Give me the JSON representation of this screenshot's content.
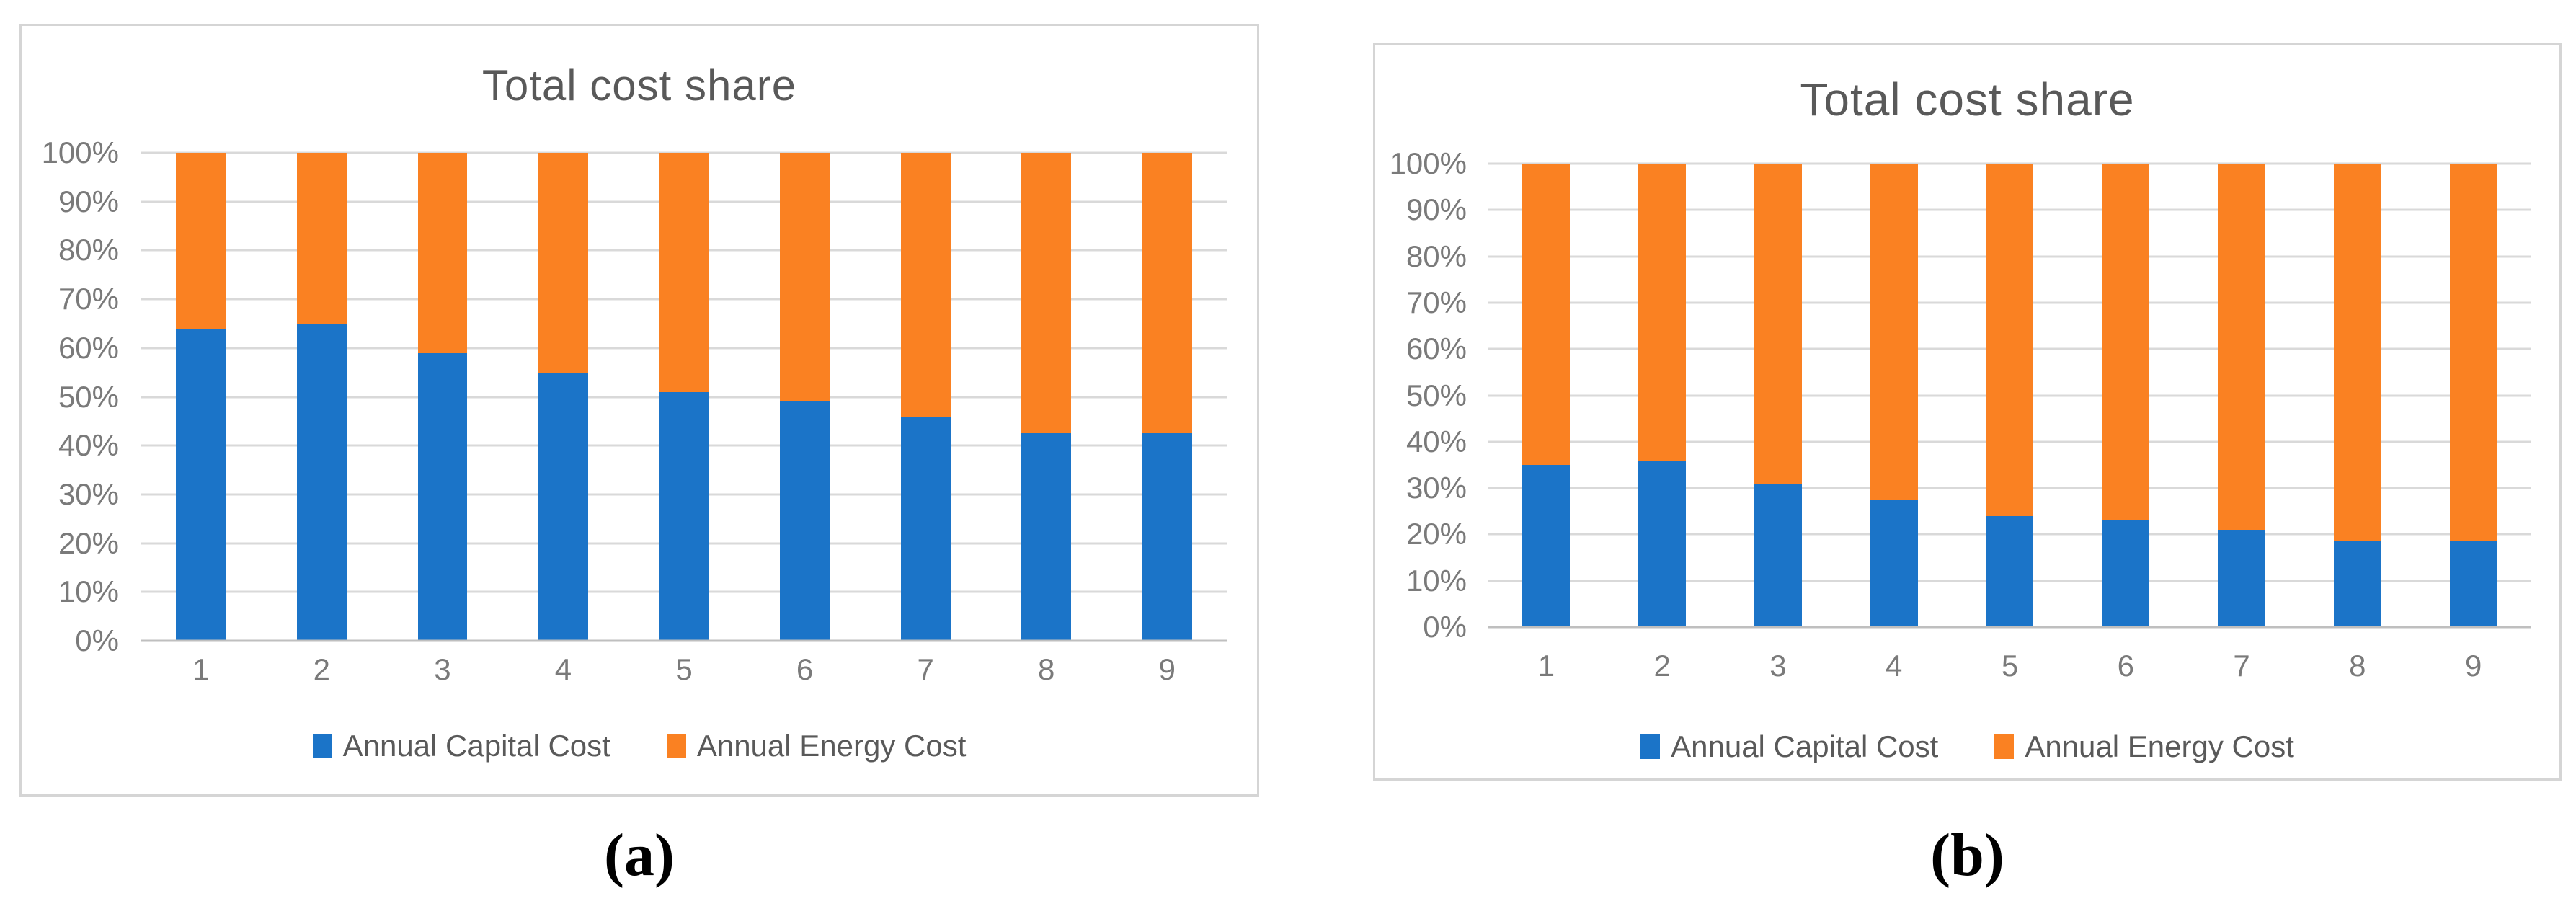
{
  "figure": {
    "captions": [
      "(a)",
      "(b)"
    ]
  },
  "colors": {
    "capital_blue": "#1B74C8",
    "energy_orange": "#FA8122",
    "title_gray": "#595959",
    "axis_label_gray": "#7A7A7A",
    "gridline_gray": "#D9D9D9",
    "axis_line_gray": "#BFBFBF",
    "panel_border_gray": "#D5D5D5"
  },
  "chart_data": [
    {
      "type": "bar",
      "variant": "stacked-100-percent",
      "title": "Total cost share",
      "categories": [
        "1",
        "2",
        "3",
        "4",
        "5",
        "6",
        "7",
        "8",
        "9"
      ],
      "series": [
        {
          "name": "Annual Capital Cost",
          "color": "#1B74C8",
          "values": [
            64,
            65,
            59,
            55,
            51,
            49,
            46,
            42.5,
            42.5
          ]
        },
        {
          "name": "Annual Energy Cost",
          "color": "#FA8122",
          "values": [
            36,
            35,
            41,
            45,
            49,
            51,
            54,
            57.5,
            57.5
          ]
        }
      ],
      "xlabel": "",
      "ylabel": "",
      "ylim": [
        0,
        100
      ],
      "y_ticks": [
        "0%",
        "10%",
        "20%",
        "30%",
        "40%",
        "50%",
        "60%",
        "70%",
        "80%",
        "90%",
        "100%"
      ],
      "grid": true,
      "legend_position": "bottom"
    },
    {
      "type": "bar",
      "variant": "stacked-100-percent",
      "title": "Total cost share",
      "categories": [
        "1",
        "2",
        "3",
        "4",
        "5",
        "6",
        "7",
        "8",
        "9"
      ],
      "series": [
        {
          "name": "Annual Capital Cost",
          "color": "#1B74C8",
          "values": [
            35,
            36,
            31,
            27.5,
            24,
            23,
            21,
            18.5,
            18.5
          ]
        },
        {
          "name": "Annual Energy Cost",
          "color": "#FA8122",
          "values": [
            65,
            64,
            69,
            72.5,
            76,
            77,
            79,
            81.5,
            81.5
          ]
        }
      ],
      "xlabel": "",
      "ylabel": "",
      "ylim": [
        0,
        100
      ],
      "y_ticks": [
        "0%",
        "10%",
        "20%",
        "30%",
        "40%",
        "50%",
        "60%",
        "70%",
        "80%",
        "90%",
        "100%"
      ],
      "grid": true,
      "legend_position": "bottom"
    }
  ]
}
